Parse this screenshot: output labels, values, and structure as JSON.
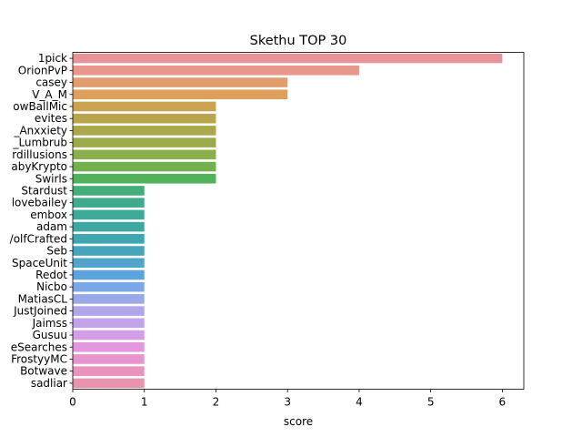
{
  "chart_data": {
    "type": "bar",
    "orientation": "horizontal",
    "title": "Skethu TOP 30",
    "xlabel": "score",
    "ylabel": "",
    "xlim": [
      0,
      6.3
    ],
    "xticks": [
      0,
      1,
      2,
      3,
      4,
      5,
      6
    ],
    "grid": false,
    "legend": "none",
    "categories": [
      "1pick",
      "OrionPvP",
      "casey",
      "V_A_M",
      "owBallMic",
      "evites",
      "_Anxxiety",
      "_Lumbrub",
      "rdillusions",
      "abyKrypto",
      "Swirls",
      "Stardust",
      "lovebailey",
      "embox",
      "adam",
      "/olfCrafted",
      "Seb",
      "SpaceUnit",
      "Redot",
      "Nicbo",
      "MatiasCL",
      "JustJoined",
      "Jaimss",
      "Gusuu",
      "eSearches",
      "FrostyyMC",
      "Botwave",
      "sadliar"
    ],
    "values": [
      6,
      4,
      3,
      3,
      2,
      2,
      2,
      2,
      2,
      2,
      2,
      1,
      1,
      1,
      1,
      1,
      1,
      1,
      1,
      1,
      1,
      1,
      1,
      1,
      1,
      1,
      1,
      1
    ],
    "colors": [
      "#e8939a",
      "#e8978a",
      "#e29d6f",
      "#dd9f5a",
      "#c9a350",
      "#b8a54c",
      "#aaa84a",
      "#9cab4a",
      "#8aae4b",
      "#73b14c",
      "#52b25b",
      "#44ae78",
      "#3fab8a",
      "#3da998",
      "#3da7a4",
      "#3ea6b0",
      "#46a5bd",
      "#51a4cc",
      "#5da4dc",
      "#7aa7e8",
      "#9aa8ea",
      "#b1a6ea",
      "#c3a2e8",
      "#d49de6",
      "#e497e0",
      "#e894cf",
      "#e993bd",
      "#e993ad"
    ]
  }
}
